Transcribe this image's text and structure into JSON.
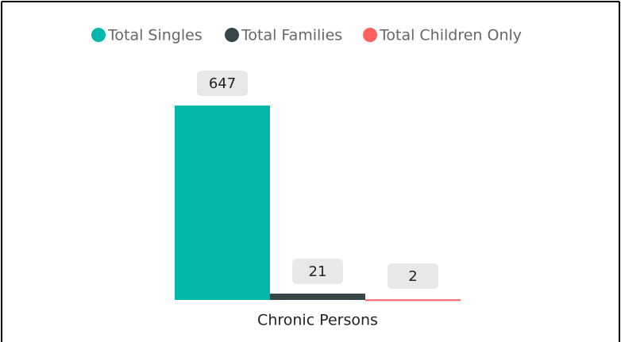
{
  "chart_data": {
    "type": "bar",
    "categories": [
      "Chronic Persons"
    ],
    "series": [
      {
        "name": "Total Singles",
        "color": "#01B8AA",
        "values": [
          647
        ]
      },
      {
        "name": "Total Families",
        "color": "#374649",
        "values": [
          21
        ]
      },
      {
        "name": "Total Children Only",
        "color": "#FD625E",
        "values": [
          2
        ]
      }
    ]
  }
}
